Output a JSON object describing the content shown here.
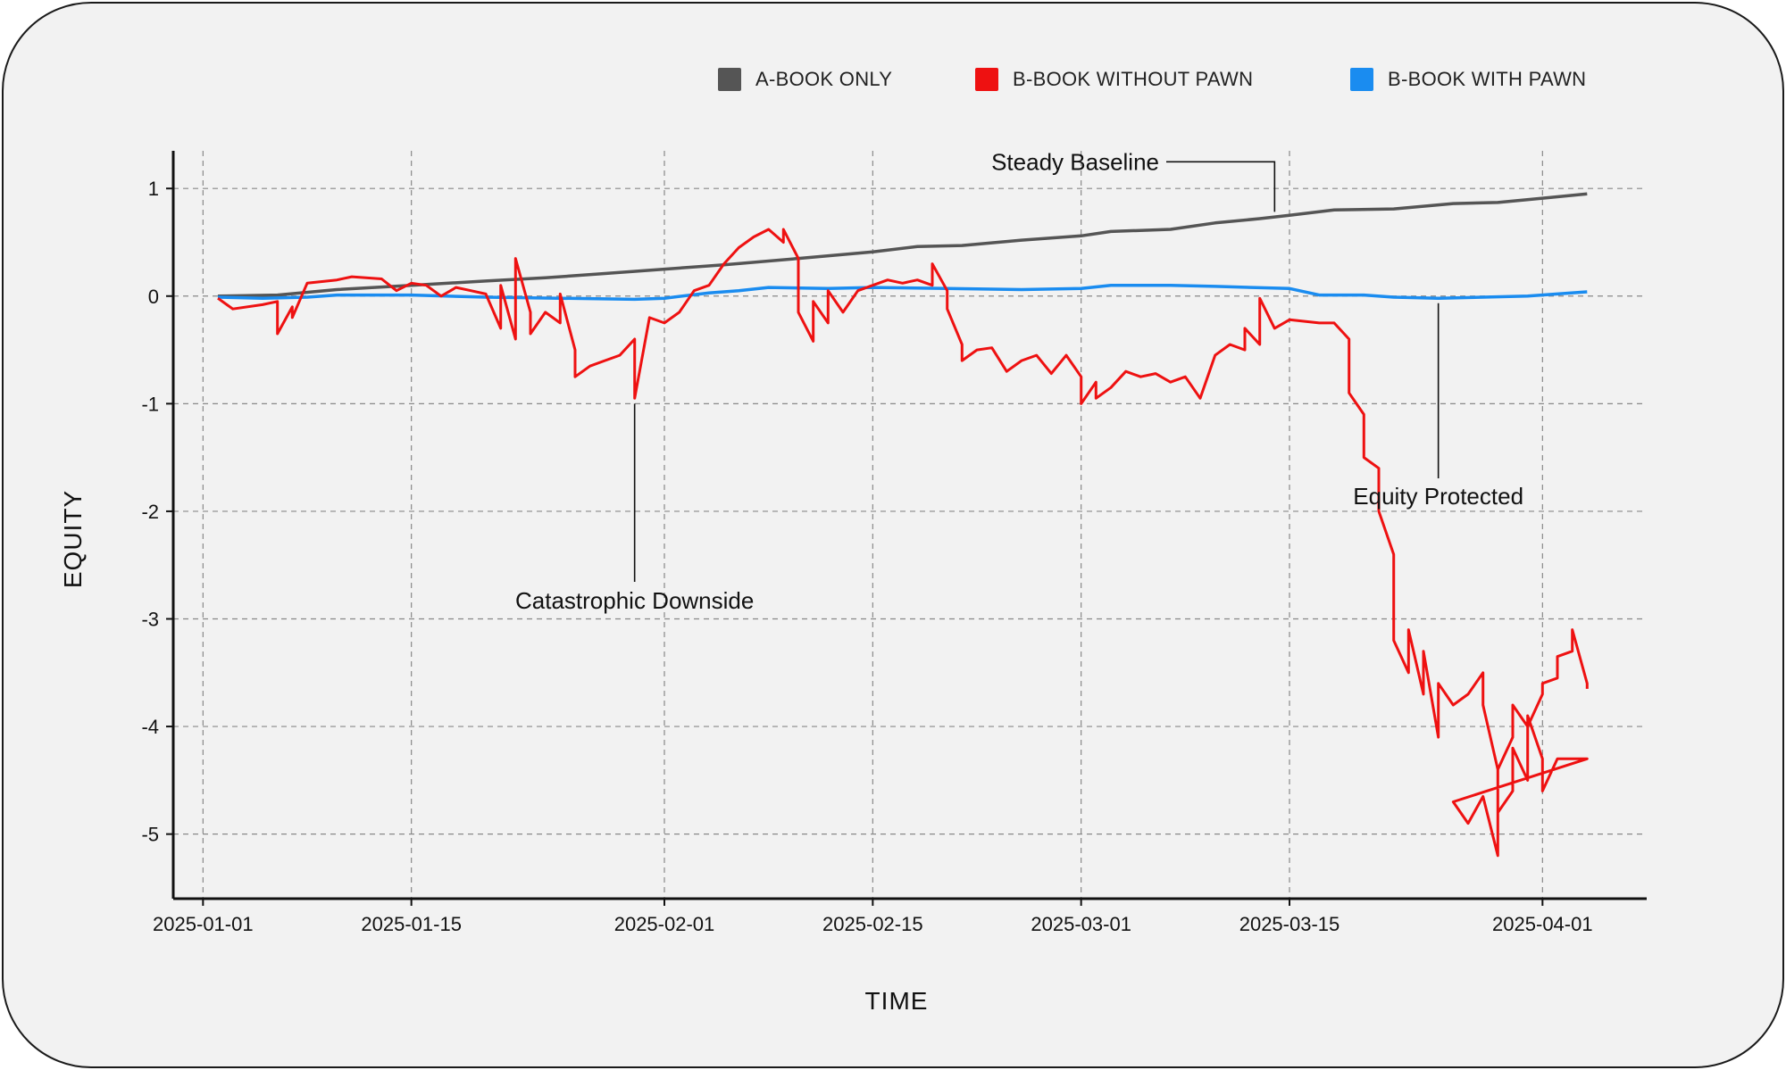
{
  "chart_data": {
    "type": "line",
    "xlabel": "TIME",
    "ylabel": "EQUITY",
    "xaxis_type": "date",
    "xlim": [
      "2024-12-30",
      "2025-04-08"
    ],
    "ylim": [
      -5.6,
      1.35
    ],
    "x_ticks": [
      "2025-01-01",
      "2025-01-15",
      "2025-02-01",
      "2025-02-15",
      "2025-03-01",
      "2025-03-15",
      "2025-04-01"
    ],
    "y_ticks": [
      1,
      0,
      -1,
      -2,
      -3,
      -4,
      -5
    ],
    "grid": true,
    "legend_position": "top-right",
    "series": [
      {
        "name": "A-BOOK ONLY",
        "color": "#555555",
        "points": [
          [
            "2025-01-02",
            0.0
          ],
          [
            "2025-01-06",
            0.01
          ],
          [
            "2025-01-10",
            0.06
          ],
          [
            "2025-01-15",
            0.1
          ],
          [
            "2025-01-20",
            0.14
          ],
          [
            "2025-01-24",
            0.17
          ],
          [
            "2025-01-28",
            0.21
          ],
          [
            "2025-02-01",
            0.25
          ],
          [
            "2025-02-05",
            0.29
          ],
          [
            "2025-02-10",
            0.35
          ],
          [
            "2025-02-15",
            0.41
          ],
          [
            "2025-02-18",
            0.46
          ],
          [
            "2025-02-21",
            0.47
          ],
          [
            "2025-02-25",
            0.52
          ],
          [
            "2025-03-01",
            0.56
          ],
          [
            "2025-03-03",
            0.6
          ],
          [
            "2025-03-07",
            0.62
          ],
          [
            "2025-03-10",
            0.68
          ],
          [
            "2025-03-13",
            0.72
          ],
          [
            "2025-03-15",
            0.75
          ],
          [
            "2025-03-18",
            0.8
          ],
          [
            "2025-03-22",
            0.81
          ],
          [
            "2025-03-26",
            0.86
          ],
          [
            "2025-03-29",
            0.87
          ],
          [
            "2025-04-01",
            0.91
          ],
          [
            "2025-04-04",
            0.95
          ]
        ]
      },
      {
        "name": "B-BOOK WITHOUT PAWN",
        "color": "#ee1111",
        "points": [
          [
            "2025-01-02",
            -0.02
          ],
          [
            "2025-01-03",
            -0.12
          ],
          [
            "2025-01-05",
            -0.08
          ],
          [
            "2025-01-06",
            -0.05
          ],
          [
            "2025-01-06",
            -0.35
          ],
          [
            "2025-01-07",
            -0.1
          ],
          [
            "2025-01-07",
            -0.2
          ],
          [
            "2025-01-08",
            0.12
          ],
          [
            "2025-01-10",
            0.15
          ],
          [
            "2025-01-11",
            0.18
          ],
          [
            "2025-01-13",
            0.16
          ],
          [
            "2025-01-14",
            0.05
          ],
          [
            "2025-01-15",
            0.12
          ],
          [
            "2025-01-16",
            0.1
          ],
          [
            "2025-01-17",
            0.0
          ],
          [
            "2025-01-18",
            0.08
          ],
          [
            "2025-01-19",
            0.05
          ],
          [
            "2025-01-20",
            0.02
          ],
          [
            "2025-01-21",
            -0.3
          ],
          [
            "2025-01-21",
            0.1
          ],
          [
            "2025-01-22",
            -0.4
          ],
          [
            "2025-01-22",
            0.35
          ],
          [
            "2025-01-23",
            -0.15
          ],
          [
            "2025-01-23",
            -0.35
          ],
          [
            "2025-01-24",
            -0.15
          ],
          [
            "2025-01-25",
            -0.25
          ],
          [
            "2025-01-25",
            0.02
          ],
          [
            "2025-01-26",
            -0.5
          ],
          [
            "2025-01-26",
            -0.75
          ],
          [
            "2025-01-27",
            -0.65
          ],
          [
            "2025-01-28",
            -0.6
          ],
          [
            "2025-01-29",
            -0.55
          ],
          [
            "2025-01-30",
            -0.4
          ],
          [
            "2025-01-30",
            -0.95
          ],
          [
            "2025-01-31",
            -0.2
          ],
          [
            "2025-02-01",
            -0.25
          ],
          [
            "2025-02-02",
            -0.15
          ],
          [
            "2025-02-03",
            0.05
          ],
          [
            "2025-02-04",
            0.1
          ],
          [
            "2025-02-05",
            0.3
          ],
          [
            "2025-02-06",
            0.45
          ],
          [
            "2025-02-07",
            0.55
          ],
          [
            "2025-02-08",
            0.62
          ],
          [
            "2025-02-09",
            0.5
          ],
          [
            "2025-02-09",
            0.62
          ],
          [
            "2025-02-10",
            0.35
          ],
          [
            "2025-02-10",
            -0.15
          ],
          [
            "2025-02-11",
            -0.42
          ],
          [
            "2025-02-11",
            -0.05
          ],
          [
            "2025-02-12",
            -0.25
          ],
          [
            "2025-02-12",
            0.05
          ],
          [
            "2025-02-13",
            -0.15
          ],
          [
            "2025-02-14",
            0.05
          ],
          [
            "2025-02-15",
            0.1
          ],
          [
            "2025-02-16",
            0.15
          ],
          [
            "2025-02-17",
            0.12
          ],
          [
            "2025-02-18",
            0.15
          ],
          [
            "2025-02-19",
            0.1
          ],
          [
            "2025-02-19",
            0.3
          ],
          [
            "2025-02-20",
            0.05
          ],
          [
            "2025-02-20",
            -0.12
          ],
          [
            "2025-02-21",
            -0.45
          ],
          [
            "2025-02-21",
            -0.6
          ],
          [
            "2025-02-22",
            -0.5
          ],
          [
            "2025-02-23",
            -0.48
          ],
          [
            "2025-02-24",
            -0.7
          ],
          [
            "2025-02-25",
            -0.6
          ],
          [
            "2025-02-26",
            -0.55
          ],
          [
            "2025-02-27",
            -0.72
          ],
          [
            "2025-02-28",
            -0.55
          ],
          [
            "2025-03-01",
            -0.75
          ],
          [
            "2025-03-01",
            -1.0
          ],
          [
            "2025-03-02",
            -0.8
          ],
          [
            "2025-03-02",
            -0.95
          ],
          [
            "2025-03-03",
            -0.85
          ],
          [
            "2025-03-04",
            -0.7
          ],
          [
            "2025-03-05",
            -0.75
          ],
          [
            "2025-03-06",
            -0.72
          ],
          [
            "2025-03-07",
            -0.8
          ],
          [
            "2025-03-08",
            -0.75
          ],
          [
            "2025-03-09",
            -0.95
          ],
          [
            "2025-03-10",
            -0.55
          ],
          [
            "2025-03-11",
            -0.45
          ],
          [
            "2025-03-12",
            -0.5
          ],
          [
            "2025-03-12",
            -0.3
          ],
          [
            "2025-03-13",
            -0.45
          ],
          [
            "2025-03-13",
            -0.02
          ],
          [
            "2025-03-14",
            -0.3
          ],
          [
            "2025-03-15",
            -0.22
          ],
          [
            "2025-03-17",
            -0.25
          ],
          [
            "2025-03-18",
            -0.25
          ],
          [
            "2025-03-19",
            -0.4
          ],
          [
            "2025-03-19",
            -0.9
          ],
          [
            "2025-03-20",
            -1.1
          ],
          [
            "2025-03-20",
            -1.5
          ],
          [
            "2025-03-21",
            -1.6
          ],
          [
            "2025-03-21",
            -2.0
          ],
          [
            "2025-03-22",
            -2.4
          ],
          [
            "2025-03-22",
            -3.2
          ],
          [
            "2025-03-23",
            -3.5
          ],
          [
            "2025-03-23",
            -3.1
          ],
          [
            "2025-03-24",
            -3.7
          ],
          [
            "2025-03-24",
            -3.3
          ],
          [
            "2025-03-25",
            -4.1
          ],
          [
            "2025-03-25",
            -3.6
          ],
          [
            "2025-03-26",
            -3.8
          ],
          [
            "2025-03-27",
            -3.7
          ],
          [
            "2025-03-28",
            -3.5
          ],
          [
            "2025-03-28",
            -3.8
          ],
          [
            "2025-03-29",
            -4.4
          ],
          [
            "2025-03-29",
            -4.8
          ],
          [
            "2025-03-30",
            -4.6
          ],
          [
            "2025-03-30",
            -4.2
          ],
          [
            "2025-03-31",
            -4.5
          ],
          [
            "2025-03-31",
            -3.9
          ],
          [
            "2025-04-01",
            -4.3
          ],
          [
            "2025-04-01",
            -4.6
          ],
          [
            "2025-04-02",
            -4.3
          ],
          [
            "2025-04-03",
            -4.3
          ],
          [
            "2025-04-04",
            -4.3
          ],
          [
            "2025-03-26",
            -4.7
          ],
          [
            "2025-03-27",
            -4.9
          ],
          [
            "2025-03-28",
            -4.65
          ],
          [
            "2025-03-29",
            -5.2
          ],
          [
            "2025-03-29",
            -4.4
          ],
          [
            "2025-03-30",
            -4.1
          ],
          [
            "2025-03-30",
            -3.8
          ],
          [
            "2025-03-31",
            -4.0
          ],
          [
            "2025-04-01",
            -3.7
          ],
          [
            "2025-04-01",
            -3.6
          ],
          [
            "2025-04-02",
            -3.55
          ],
          [
            "2025-04-02",
            -3.35
          ],
          [
            "2025-04-03",
            -3.3
          ],
          [
            "2025-04-03",
            -3.1
          ],
          [
            "2025-04-04",
            -3.6
          ],
          [
            "2025-04-04",
            -3.65
          ]
        ]
      },
      {
        "name": "B-BOOK WITH PAWN",
        "color": "#1a8cf0",
        "points": [
          [
            "2025-01-02",
            -0.01
          ],
          [
            "2025-01-05",
            -0.02
          ],
          [
            "2025-01-08",
            -0.01
          ],
          [
            "2025-01-10",
            0.01
          ],
          [
            "2025-01-15",
            0.01
          ],
          [
            "2025-01-20",
            -0.01
          ],
          [
            "2025-01-25",
            -0.02
          ],
          [
            "2025-01-30",
            -0.03
          ],
          [
            "2025-02-01",
            -0.02
          ],
          [
            "2025-02-04",
            0.03
          ],
          [
            "2025-02-06",
            0.05
          ],
          [
            "2025-02-08",
            0.08
          ],
          [
            "2025-02-12",
            0.07
          ],
          [
            "2025-02-15",
            0.08
          ],
          [
            "2025-02-20",
            0.07
          ],
          [
            "2025-02-25",
            0.06
          ],
          [
            "2025-03-01",
            0.07
          ],
          [
            "2025-03-03",
            0.1
          ],
          [
            "2025-03-07",
            0.1
          ],
          [
            "2025-03-10",
            0.09
          ],
          [
            "2025-03-15",
            0.07
          ],
          [
            "2025-03-17",
            0.01
          ],
          [
            "2025-03-20",
            0.01
          ],
          [
            "2025-03-22",
            -0.01
          ],
          [
            "2025-03-25",
            -0.02
          ],
          [
            "2025-03-28",
            -0.01
          ],
          [
            "2025-03-31",
            0.0
          ],
          [
            "2025-04-02",
            0.02
          ],
          [
            "2025-04-04",
            0.04
          ]
        ]
      }
    ],
    "annotations": [
      {
        "text": "Steady Baseline",
        "x": "2025-03-14",
        "y": 0.75
      },
      {
        "text": "Catastrophic Downside",
        "x": "2025-01-30",
        "y": -0.95
      },
      {
        "text": "Equity Protected",
        "x": "2025-03-25",
        "y": 0.0
      }
    ]
  }
}
